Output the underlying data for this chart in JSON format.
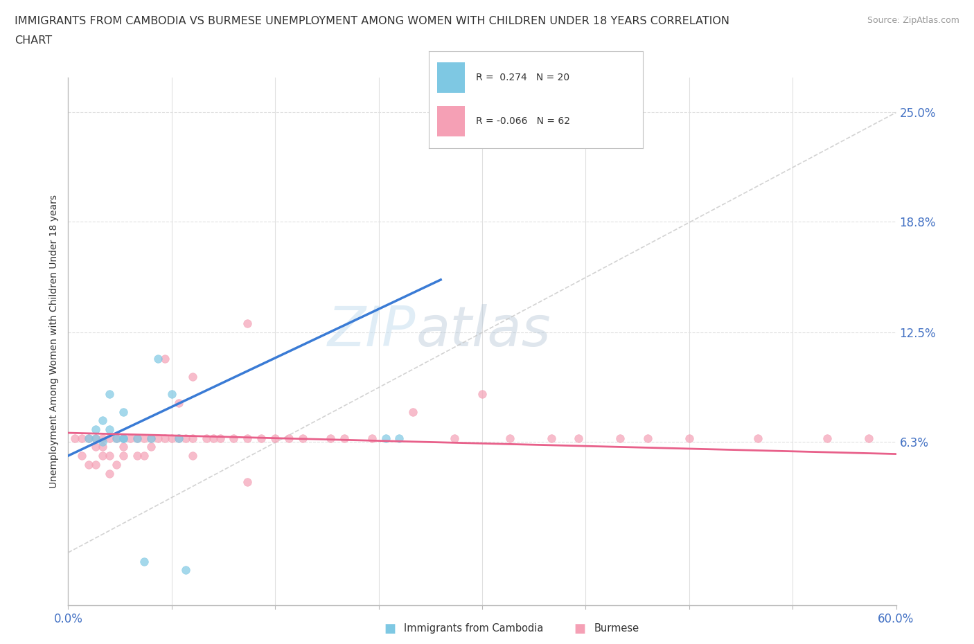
{
  "title_line1": "IMMIGRANTS FROM CAMBODIA VS BURMESE UNEMPLOYMENT AMONG WOMEN WITH CHILDREN UNDER 18 YEARS CORRELATION",
  "title_line2": "CHART",
  "source": "Source: ZipAtlas.com",
  "ylabel": "Unemployment Among Women with Children Under 18 years",
  "xlim": [
    0.0,
    0.6
  ],
  "ylim": [
    -0.03,
    0.27
  ],
  "ytick_vals": [
    0.063,
    0.125,
    0.188,
    0.25
  ],
  "ytick_labels": [
    "6.3%",
    "12.5%",
    "18.8%",
    "25.0%"
  ],
  "xtick_vals": [
    0.0,
    0.075,
    0.15,
    0.225,
    0.3,
    0.375,
    0.45,
    0.525,
    0.6
  ],
  "xtick_labels": [
    "0.0%",
    "",
    "",
    "",
    "",
    "",
    "",
    "",
    "60.0%"
  ],
  "watermark_zip": "ZIP",
  "watermark_atlas": "atlas",
  "legend_r1": "R =  0.274   N = 20",
  "legend_r2": "R = -0.066   N = 62",
  "color_cambodia": "#7ec8e3",
  "color_burmese": "#f5a0b5",
  "color_trend_cambodia": "#3a7bd5",
  "color_trend_burmese": "#e8608a",
  "color_ref_line": "#c8c8c8",
  "color_grid": "#e0e0e0",
  "color_ytick": "#4472c4",
  "color_xtick": "#4472c4",
  "cambodia_x": [
    0.015,
    0.02,
    0.02,
    0.025,
    0.025,
    0.03,
    0.03,
    0.035,
    0.04,
    0.04,
    0.04,
    0.05,
    0.055,
    0.06,
    0.065,
    0.075,
    0.08,
    0.085,
    0.23,
    0.24
  ],
  "cambodia_y": [
    0.065,
    0.065,
    0.07,
    0.063,
    0.075,
    0.07,
    0.09,
    0.065,
    0.065,
    0.065,
    0.08,
    0.065,
    -0.005,
    0.065,
    0.11,
    0.09,
    0.065,
    -0.01,
    0.065,
    0.065
  ],
  "burmese_x": [
    0.005,
    0.01,
    0.01,
    0.015,
    0.015,
    0.02,
    0.02,
    0.02,
    0.025,
    0.025,
    0.025,
    0.03,
    0.03,
    0.03,
    0.035,
    0.035,
    0.04,
    0.04,
    0.04,
    0.045,
    0.05,
    0.05,
    0.055,
    0.055,
    0.06,
    0.06,
    0.065,
    0.07,
    0.075,
    0.08,
    0.085,
    0.09,
    0.09,
    0.1,
    0.105,
    0.11,
    0.12,
    0.13,
    0.13,
    0.14,
    0.15,
    0.16,
    0.17,
    0.19,
    0.2,
    0.22,
    0.25,
    0.28,
    0.3,
    0.32,
    0.35,
    0.37,
    0.4,
    0.42,
    0.45,
    0.5,
    0.55,
    0.58,
    0.07,
    0.08,
    0.09,
    0.13
  ],
  "burmese_y": [
    0.065,
    0.065,
    0.055,
    0.065,
    0.05,
    0.05,
    0.06,
    0.065,
    0.06,
    0.055,
    0.065,
    0.045,
    0.055,
    0.065,
    0.065,
    0.05,
    0.055,
    0.06,
    0.065,
    0.065,
    0.065,
    0.055,
    0.055,
    0.065,
    0.06,
    0.065,
    0.065,
    0.065,
    0.065,
    0.065,
    0.065,
    0.065,
    0.055,
    0.065,
    0.065,
    0.065,
    0.065,
    0.04,
    0.065,
    0.065,
    0.065,
    0.065,
    0.065,
    0.065,
    0.065,
    0.065,
    0.08,
    0.065,
    0.09,
    0.065,
    0.065,
    0.065,
    0.065,
    0.065,
    0.065,
    0.065,
    0.065,
    0.065,
    0.11,
    0.085,
    0.1,
    0.13
  ],
  "trend_cambodia_x0": 0.0,
  "trend_cambodia_y0": 0.055,
  "trend_cambodia_x1": 0.27,
  "trend_cambodia_y1": 0.155,
  "trend_burmese_x0": 0.0,
  "trend_burmese_y0": 0.068,
  "trend_burmese_x1": 0.6,
  "trend_burmese_y1": 0.056
}
